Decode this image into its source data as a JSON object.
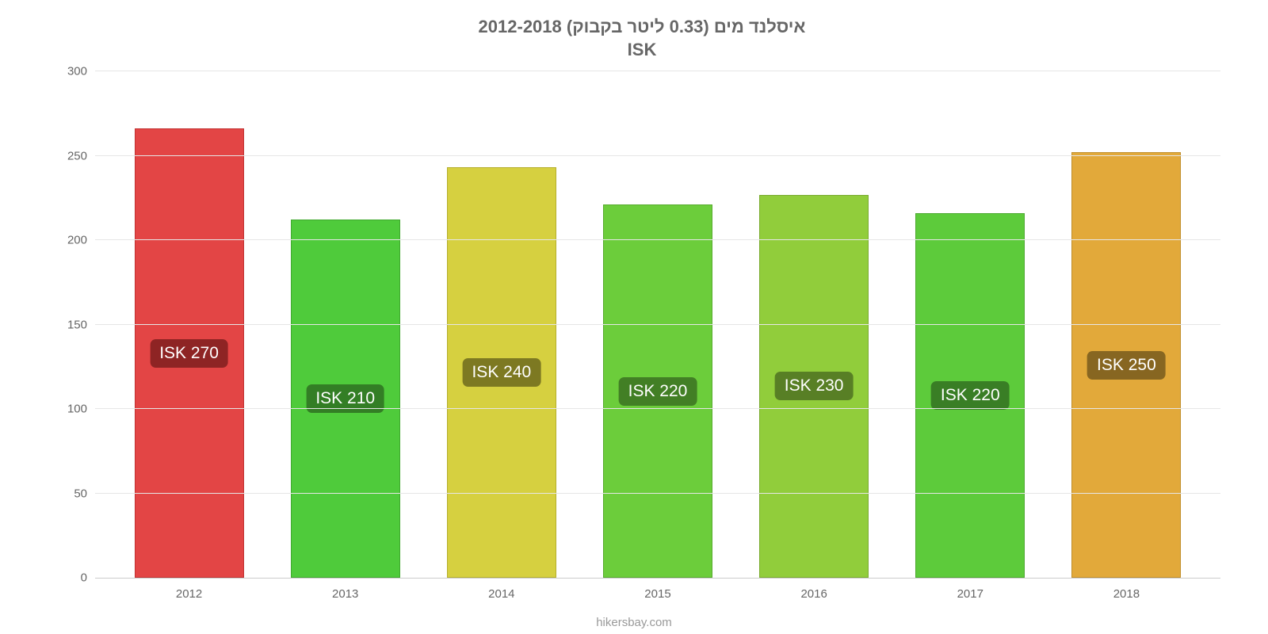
{
  "chart": {
    "type": "bar",
    "title_line1": "איסלנד מים (0.33 ליטר בקבוק) 2012-2018",
    "title_line2": "ISK",
    "title_fontsize": 22,
    "title_color": "#666666",
    "background_color": "#ffffff",
    "grid_color": "#e6e6e6",
    "axis_line_color": "#cccccc",
    "ylim": [
      0,
      300
    ],
    "ytick_step": 50,
    "yticks": [
      0,
      50,
      100,
      150,
      200,
      250,
      300
    ],
    "axis_label_fontsize": 15,
    "axis_label_color": "#666666",
    "bar_width_pct": 70,
    "bar_border_width": 1,
    "badge_fontsize": 21,
    "badge_radius": 7,
    "categories": [
      "2012",
      "2013",
      "2014",
      "2015",
      "2016",
      "2017",
      "2018"
    ],
    "values": [
      266,
      212,
      243,
      221,
      227,
      216,
      252
    ],
    "value_labels": [
      "ISK 270",
      "ISK 210",
      "ISK 240",
      "ISK 220",
      "ISK 230",
      "ISK 220",
      "ISK 250"
    ],
    "bar_fill_colors": [
      "#e34545",
      "#4fcb3b",
      "#d6d040",
      "#6ccd3b",
      "#91cd3b",
      "#5dcb3b",
      "#e2a93a"
    ],
    "bar_border_colors": [
      "#c13232",
      "#3fa82e",
      "#b5af2d",
      "#57ab2e",
      "#79ab2e",
      "#4ba92e",
      "#c08e2b"
    ],
    "badge_bg_colors": [
      "#8e2424",
      "#337e25",
      "#7d7922",
      "#427f25",
      "#587f25",
      "#397e25",
      "#876621"
    ]
  },
  "attribution": "hikersbay.com",
  "attribution_fontsize": 15,
  "attribution_color": "#999999"
}
